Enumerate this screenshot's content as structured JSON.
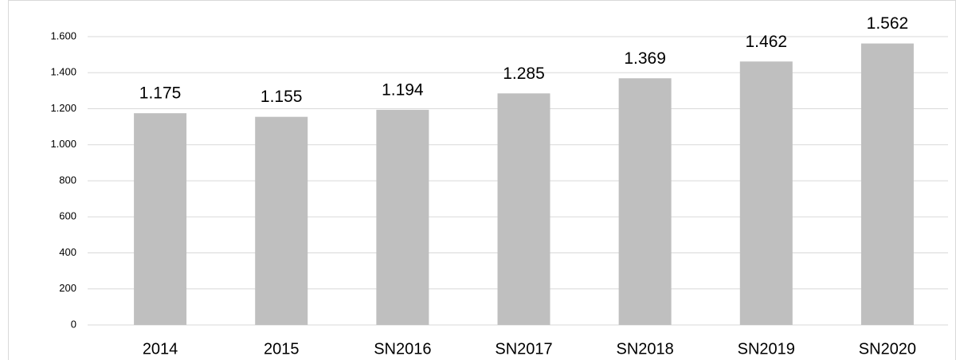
{
  "chart_data": {
    "type": "bar",
    "categories": [
      "2014",
      "2015",
      "SN2016",
      "SN2017",
      "SN2018",
      "SN2019",
      "SN2020"
    ],
    "values": [
      1175,
      1155,
      1194,
      1285,
      1369,
      1462,
      1562
    ],
    "value_labels": [
      "1.175",
      "1.155",
      "1.194",
      "1.285",
      "1.369",
      "1.462",
      "1.562"
    ],
    "color": "#bfbfbf",
    "ylim": [
      0,
      1600
    ],
    "yticks": [
      0,
      200,
      400,
      600,
      800,
      {
        "value": 1000,
        "label": "1.000"
      },
      {
        "value": 1200,
        "label": "1.200"
      },
      {
        "value": 1400,
        "label": "1.400"
      },
      {
        "value": 1600,
        "label": "1.600"
      }
    ],
    "grid": true
  }
}
